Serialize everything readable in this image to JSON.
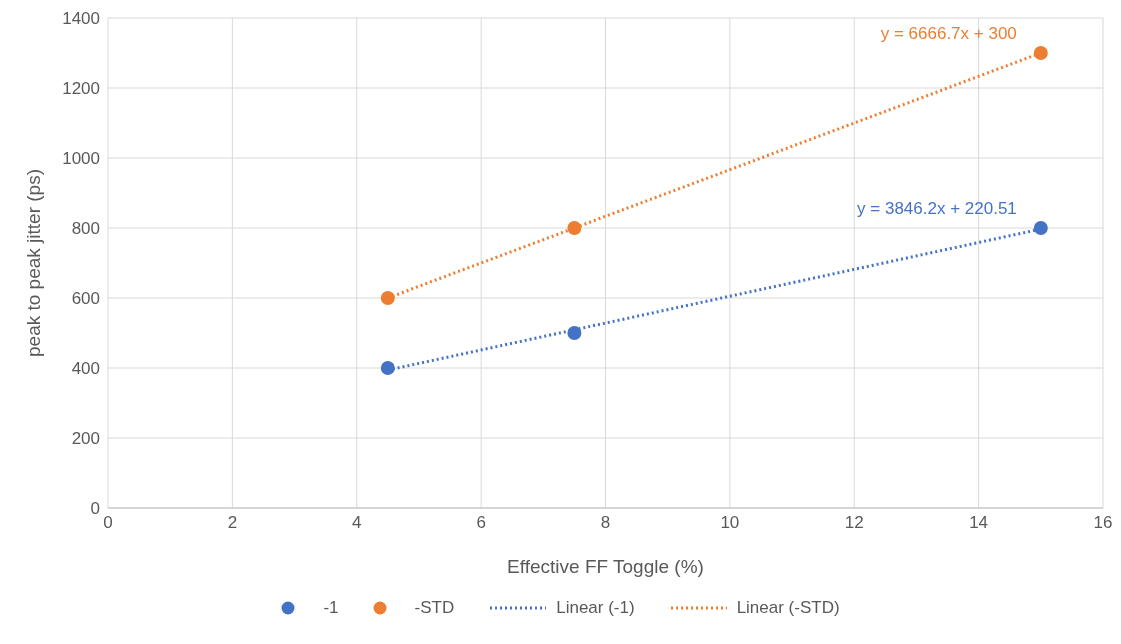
{
  "chart_data": {
    "type": "scatter",
    "xlabel": "Effective FF Toggle (%)",
    "ylabel": "peak to peak jitter (ps)",
    "series": [
      {
        "name": "-1",
        "color": "#4472c4",
        "x": [
          4.5,
          7.5,
          15
        ],
        "values": [
          400,
          500,
          800
        ]
      },
      {
        "name": "-STD",
        "color": "#ed7d31",
        "x": [
          4.5,
          7.5,
          15
        ],
        "values": [
          600,
          800,
          1300
        ]
      },
      {
        "name": "Linear (-1)",
        "type": "line",
        "color": "#4472c4",
        "x": [
          4.5,
          15
        ],
        "values": [
          394,
          797
        ],
        "line_style": "dotted",
        "marker": "none"
      },
      {
        "name": "Linear (-STD)",
        "type": "line",
        "color": "#ed7d31",
        "x": [
          4.5,
          15
        ],
        "values": [
          600,
          1300
        ],
        "line_style": "dotted",
        "marker": "none"
      }
    ],
    "annotations": [
      "y = 3846.2x + 220.51",
      "y = 6666.7x + 300"
    ],
    "xlim": [
      0,
      16
    ],
    "xticks": [
      0,
      2,
      4,
      6,
      8,
      10,
      12,
      14,
      16
    ],
    "ylim": [
      0,
      1400
    ],
    "yticks": [
      0,
      200,
      400,
      600,
      800,
      1000,
      1200,
      1400
    ],
    "grid": true,
    "legend": "bottom",
    "marker": "circle"
  }
}
